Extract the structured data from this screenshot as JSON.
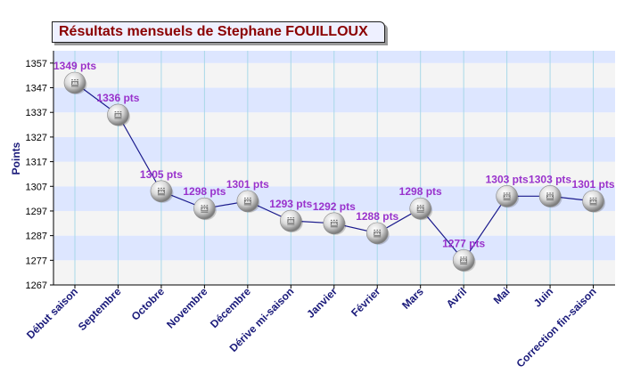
{
  "chart_data": {
    "type": "line",
    "title": "Résultats mensuels de Stephane FOUILLOUX",
    "ylabel": "Points",
    "xlabel": "",
    "categories": [
      "Début saison",
      "Septembre",
      "Octobre",
      "Novembre",
      "Décembre",
      "Dérive mi-saison",
      "Janvier",
      "Février",
      "Mars",
      "Avril",
      "Mai",
      "Juin",
      "Correction fin-saison"
    ],
    "values": [
      1349,
      1336,
      1305,
      1298,
      1301,
      1293,
      1292,
      1288,
      1298,
      1277,
      1303,
      1303,
      1301
    ],
    "point_labels": [
      "1349 pts",
      "1336 pts",
      "1305 pts",
      "1298 pts",
      "1301 pts",
      "1293 pts",
      "1292 pts",
      "1288 pts",
      "1298 pts",
      "1277 pts",
      "1303 pts",
      "1303 pts",
      "1301 pts"
    ],
    "yticks": [
      1267,
      1277,
      1287,
      1297,
      1307,
      1317,
      1327,
      1337,
      1347,
      1357
    ],
    "ylim": [
      1267,
      1362
    ],
    "grid": true,
    "colors": {
      "line": "#1a1a8c",
      "label": "#9932cc",
      "title": "#8b0000",
      "band_a": "#f4f4f4",
      "band_b": "#dde6ff",
      "gridline": "#a8d8e8",
      "axis_text": "#1a1a7a"
    }
  }
}
